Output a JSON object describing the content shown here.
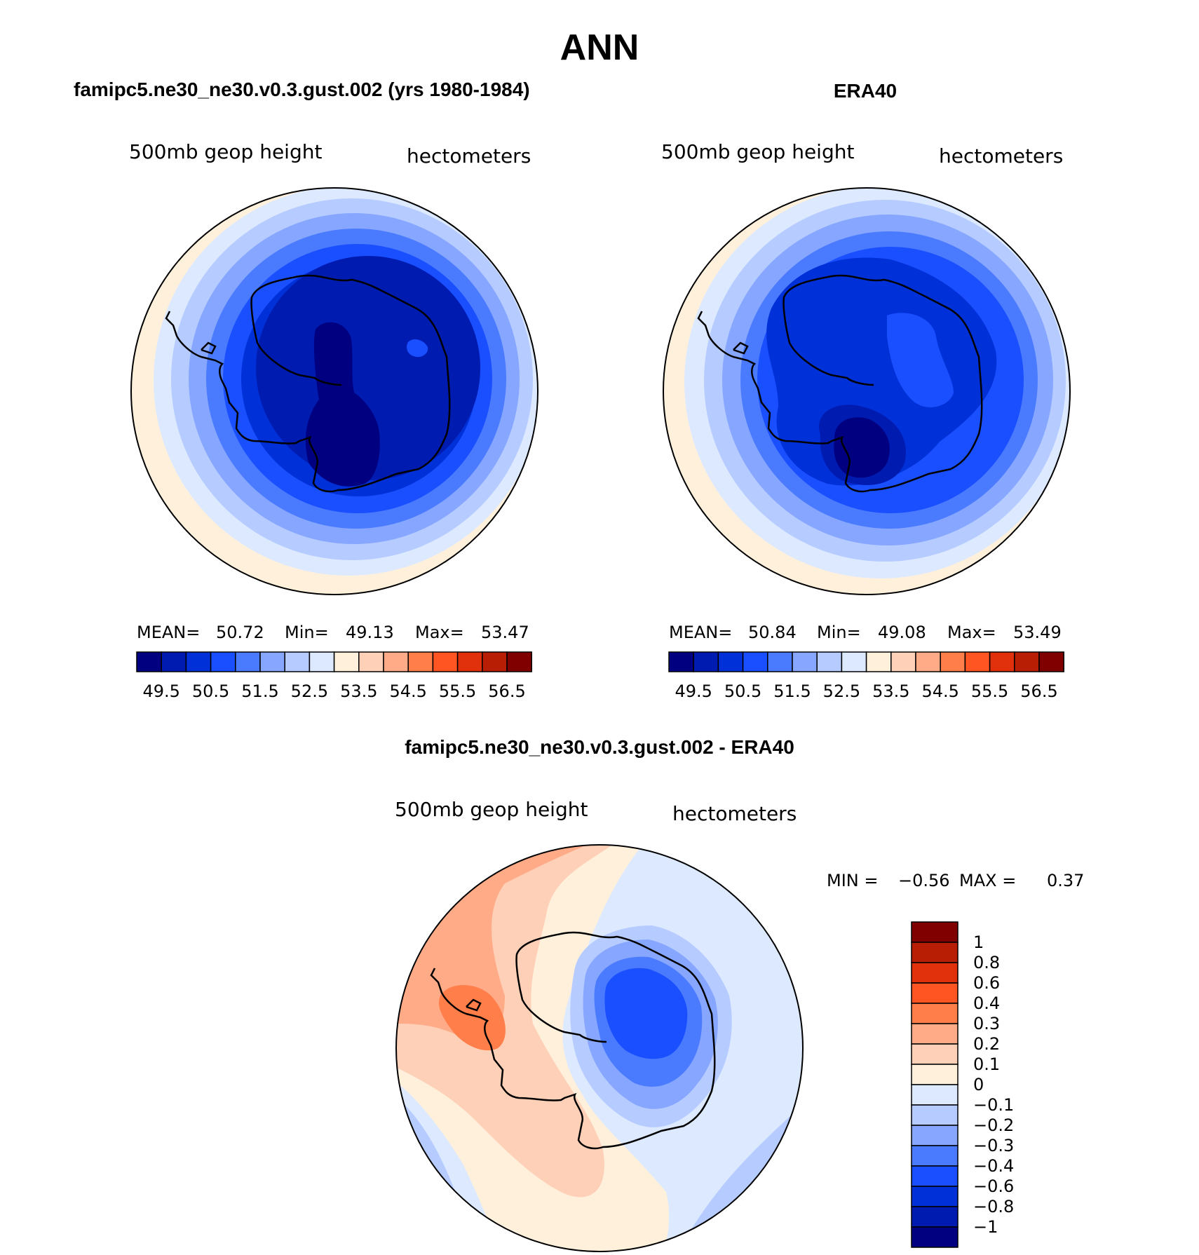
{
  "figure": {
    "title": "ANN",
    "left_title": "famipc5.ne30_ne30.v0.3.gust.002 (yrs 1980-1984)",
    "right_title": "ERA40",
    "diff_title": "famipc5.ne30_ne30.v0.3.gust.002 - ERA40"
  },
  "panels": [
    {
      "field": "500mb geop height",
      "units": "hectometers",
      "stats": {
        "mean_label": "MEAN=",
        "mean": "50.72",
        "min_label": "Min=",
        "min": "49.13",
        "max_label": "Max=",
        "max": "53.47"
      }
    },
    {
      "field": "500mb geop height",
      "units": "hectometers",
      "stats": {
        "mean_label": "MEAN=",
        "mean": "50.84",
        "min_label": "Min=",
        "min": "49.08",
        "max_label": "Max=",
        "max": "53.49"
      }
    },
    {
      "field": "500mb geop height",
      "units": "hectometers",
      "stats": {
        "min_label": "MIN =",
        "min": "−0.56",
        "max_label": "MAX =",
        "max": "0.37"
      }
    }
  ],
  "colorbar_main": {
    "colors": [
      "#000080",
      "#001bb0",
      "#0030d8",
      "#1a4fff",
      "#4a7bff",
      "#86a6ff",
      "#b6cbff",
      "#dce9ff",
      "#fff0dc",
      "#ffd0b8",
      "#ffab88",
      "#ff7e4a",
      "#ff5522",
      "#e0300c",
      "#b81e04",
      "#800000"
    ],
    "labels": [
      "49.5",
      "50.5",
      "51.5",
      "52.5",
      "53.5",
      "54.5",
      "55.5",
      "56.5"
    ]
  },
  "colorbar_diff": {
    "colors": [
      "#800000",
      "#b81e04",
      "#e0300c",
      "#ff5522",
      "#ff7e4a",
      "#ffab88",
      "#ffd0b8",
      "#fff0dc",
      "#dce9ff",
      "#b6cbff",
      "#86a6ff",
      "#4a7bff",
      "#1a4fff",
      "#0030d8",
      "#001bb0",
      "#000080"
    ],
    "labels": [
      "1",
      "0.8",
      "0.6",
      "0.4",
      "0.3",
      "0.2",
      "0.1",
      "0",
      "−0.1",
      "−0.2",
      "−0.3",
      "−0.4",
      "−0.6",
      "−0.8",
      "−1"
    ]
  },
  "map_data": {
    "projection": "south-polar stereographic",
    "region": "Antarctica",
    "fields": [
      {
        "panel": "model",
        "values_hm_min": 49.13,
        "values_hm_max": 53.47,
        "mean": 50.72
      },
      {
        "panel": "ERA40",
        "values_hm_min": 49.08,
        "values_hm_max": 53.49,
        "mean": 50.84
      },
      {
        "panel": "difference",
        "min": -0.56,
        "max": 0.37
      }
    ]
  }
}
